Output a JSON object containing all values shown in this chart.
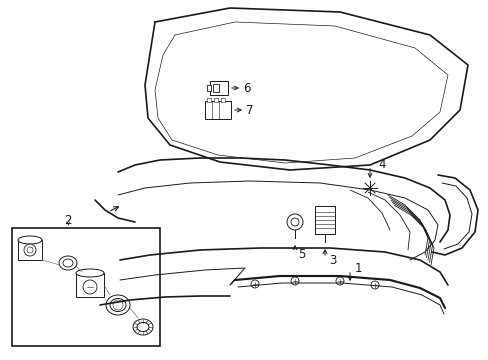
{
  "bg_color": "#ffffff",
  "line_color": "#1a1a1a",
  "lw_main": 1.2,
  "lw_thin": 0.7,
  "lw_hair": 0.4,
  "figsize": [
    4.89,
    3.6
  ],
  "dpi": 100,
  "label_fontsize": 8.5
}
